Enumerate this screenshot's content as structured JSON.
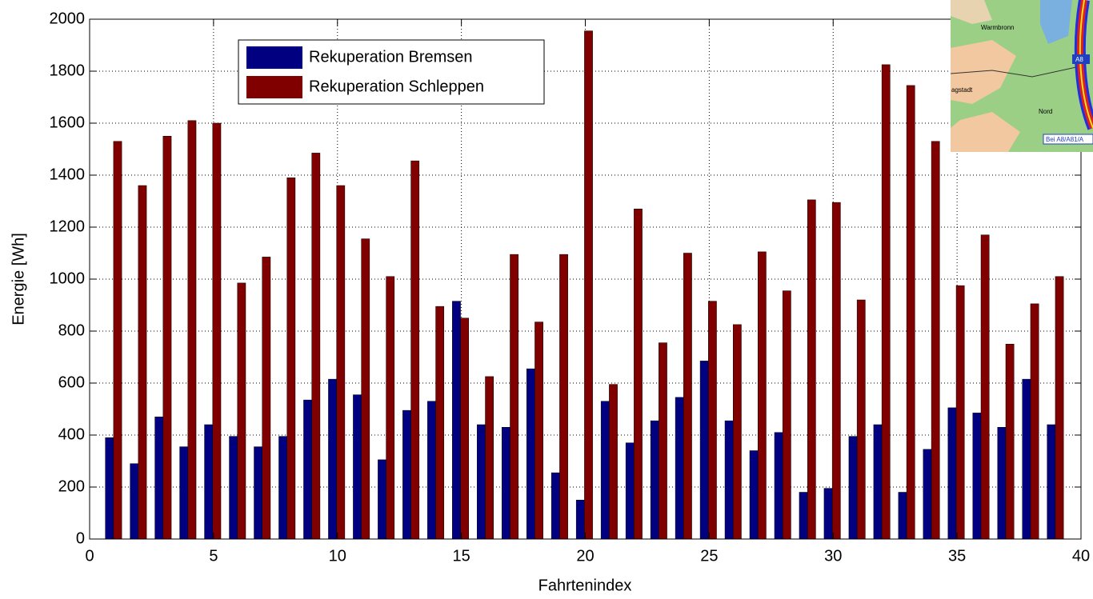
{
  "chart_data": {
    "type": "bar",
    "x_label": "Fahrtenindex",
    "y_label": "Energie [Wh]",
    "x": [
      1,
      2,
      3,
      4,
      5,
      6,
      7,
      8,
      9,
      10,
      11,
      12,
      13,
      14,
      15,
      16,
      17,
      18,
      19,
      20,
      21,
      22,
      23,
      24,
      25,
      26,
      27,
      28,
      29,
      30,
      31,
      32,
      33,
      34,
      35,
      36,
      37,
      38,
      39
    ],
    "series": [
      {
        "name": "Rekuperation Bremsen",
        "color": "#000080",
        "values": [
          390,
          290,
          470,
          355,
          440,
          395,
          355,
          395,
          535,
          615,
          555,
          305,
          495,
          530,
          915,
          440,
          430,
          655,
          255,
          150,
          530,
          370,
          455,
          545,
          685,
          455,
          340,
          410,
          180,
          195,
          395,
          440,
          180,
          345,
          505,
          485,
          430,
          615,
          440
        ]
      },
      {
        "name": "Rekuperation Schleppen",
        "color": "#800000",
        "values": [
          1530,
          1360,
          1550,
          1610,
          1600,
          985,
          1085,
          1390,
          1485,
          1360,
          1155,
          1010,
          1455,
          895,
          850,
          625,
          1095,
          835,
          1095,
          1955,
          595,
          1270,
          755,
          1100,
          915,
          825,
          1105,
          955,
          1305,
          1295,
          920,
          1825,
          1745,
          1530,
          975,
          1170,
          750,
          905,
          1010
        ]
      }
    ],
    "xlim": [
      0,
      40
    ],
    "xticks": [
      0,
      5,
      10,
      15,
      20,
      25,
      30,
      35,
      40
    ],
    "ylim": [
      0,
      2000
    ],
    "yticks": [
      0,
      200,
      400,
      600,
      800,
      1000,
      1200,
      1400,
      1600,
      1800,
      2000
    ],
    "grid": true,
    "legend_loc": "upper left"
  },
  "map_inset": {
    "labels": [
      "Warmbronn",
      "A8",
      "agstadt",
      "Nord",
      "Bei A8/A81/A"
    ]
  }
}
